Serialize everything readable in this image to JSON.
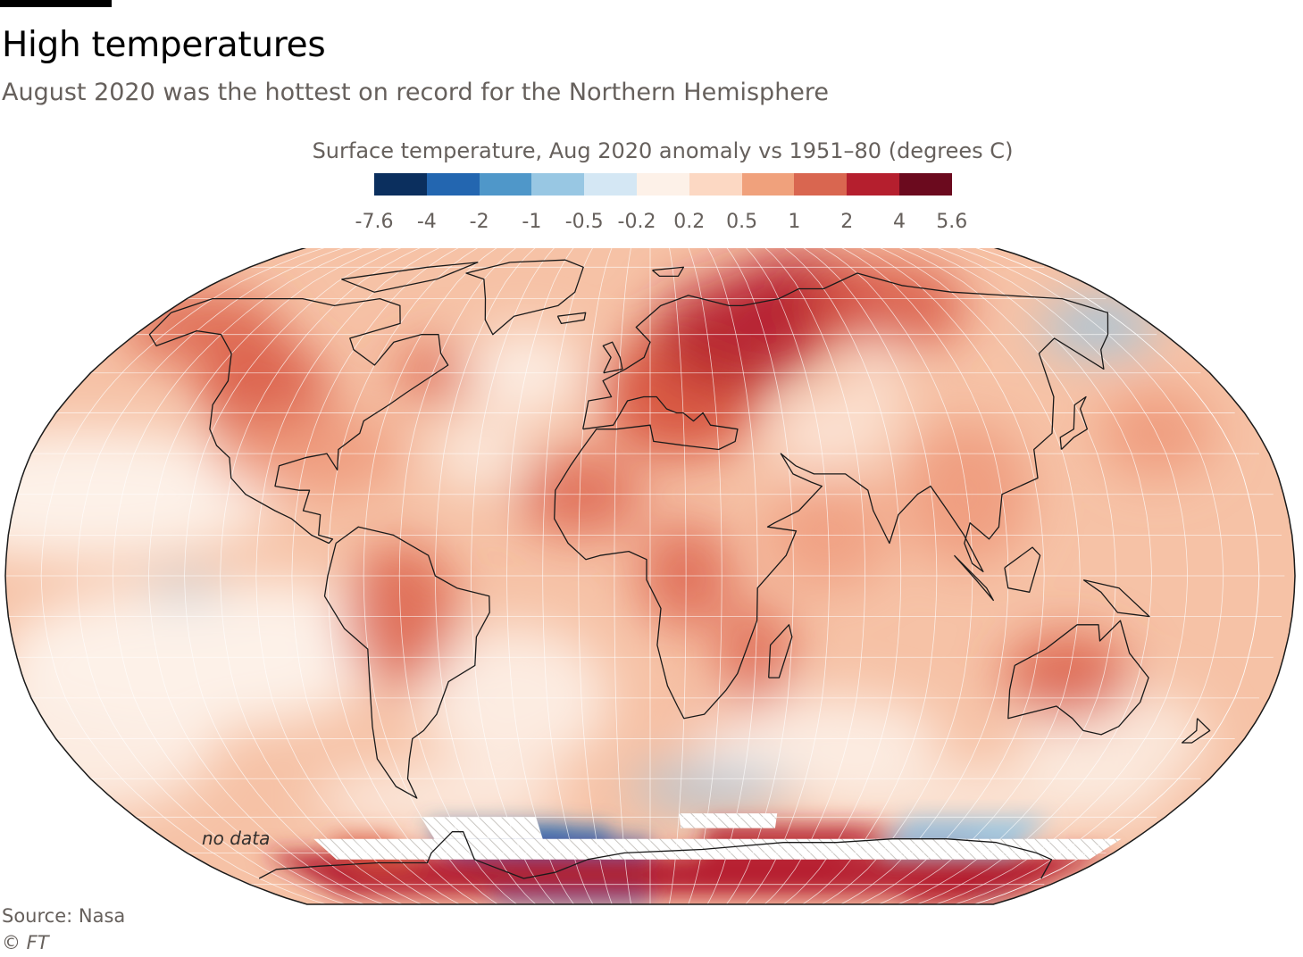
{
  "header": {
    "title": "High temperatures",
    "subtitle": "August 2020 was the hottest on record for the Northern Hemisphere"
  },
  "legend": {
    "title": "Surface temperature, Aug 2020 anomaly vs 1951–80 (degrees C)",
    "ticks": [
      "-7.6",
      "-4",
      "-2",
      "-1",
      "-0.5",
      "-0.2",
      "0.2",
      "0.5",
      "1",
      "2",
      "4",
      "5.6"
    ],
    "colors": [
      "#0b2f5e",
      "#2366b0",
      "#4f97c9",
      "#98c7e3",
      "#d4e7f4",
      "#fdf1e8",
      "#fcd8c3",
      "#f0a17c",
      "#d96650",
      "#b51f2e",
      "#6b0a1e"
    ]
  },
  "map": {
    "projection": "Robinson",
    "no_data_label": "no data",
    "colors": {
      "neutral": "#fdf1e8",
      "warm_light": "#f6c2a6",
      "warm": "#ee9678",
      "warm_strong": "#d8543f",
      "hot": "#b51f2e",
      "cool": "#98c7e3",
      "cold": "#2366b0",
      "coastline": "#1a1a1a",
      "graticule": "#ffffff"
    }
  },
  "footer": {
    "source": "Source: Nasa",
    "copyright": "© FT"
  }
}
